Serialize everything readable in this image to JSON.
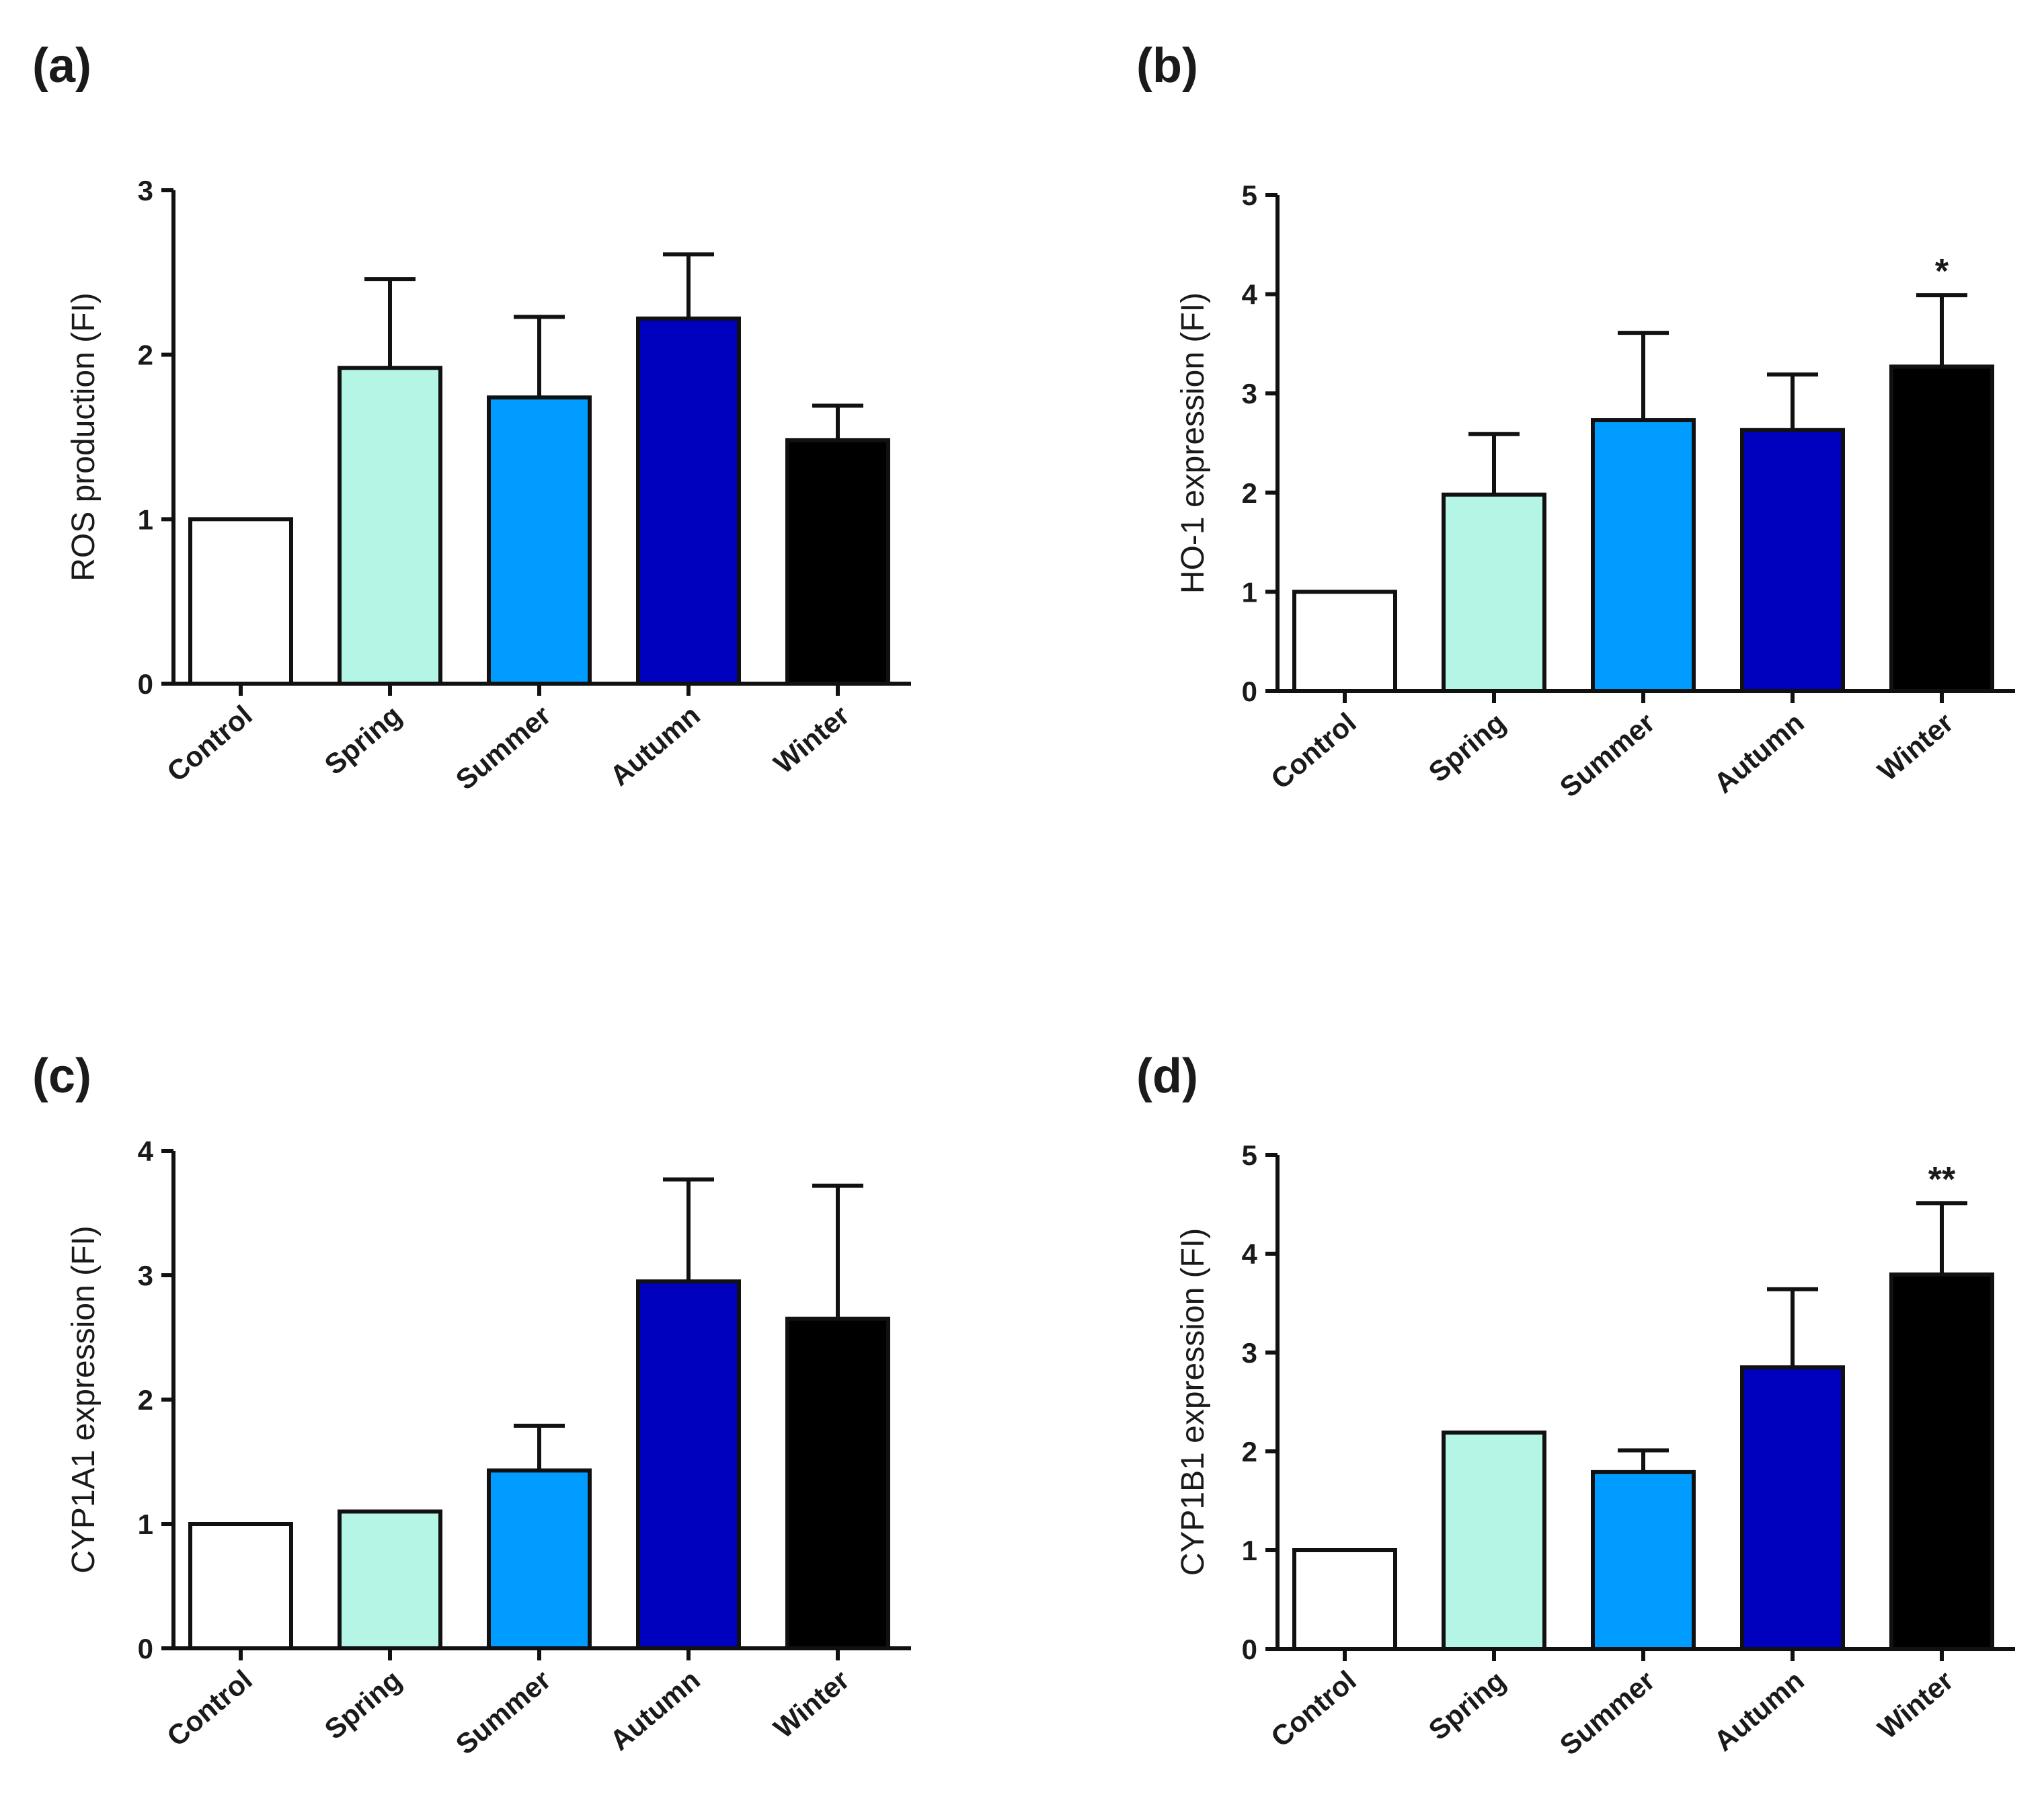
{
  "chart_data": [
    {
      "panel": "(a)",
      "type": "bar",
      "categories": [
        "Control",
        "Spring",
        "Summer",
        "Autumn",
        "Winter"
      ],
      "values": [
        1.0,
        1.92,
        1.74,
        2.22,
        1.48
      ],
      "errors": [
        0.0,
        0.54,
        0.49,
        0.39,
        0.21
      ],
      "significance": [
        "",
        "",
        "",
        "",
        ""
      ],
      "colors": [
        "#ffffff",
        "#b5f5e6",
        "#009cff",
        "#0000bf",
        "#000000"
      ],
      "ylabel": "ROS production (FI)",
      "xlabel": "",
      "ylim": [
        0,
        3
      ],
      "yticks": [
        "0",
        "1",
        "2",
        "3"
      ]
    },
    {
      "panel": "(b)",
      "type": "bar",
      "categories": [
        "Control",
        "Spring",
        "Summer",
        "Autumn",
        "Winter"
      ],
      "values": [
        1.0,
        1.98,
        2.73,
        2.63,
        3.27
      ],
      "errors": [
        0.0,
        0.61,
        0.88,
        0.56,
        0.72
      ],
      "significance": [
        "",
        "",
        "",
        "",
        "*"
      ],
      "colors": [
        "#ffffff",
        "#b5f5e6",
        "#009cff",
        "#0000bf",
        "#000000"
      ],
      "ylabel": "HO-1 expression (FI)",
      "xlabel": "",
      "ylim": [
        0,
        5
      ],
      "yticks": [
        "0",
        "1",
        "2",
        "3",
        "4",
        "5"
      ]
    },
    {
      "panel": "(c)",
      "type": "bar",
      "categories": [
        "Control",
        "Spring",
        "Summer",
        "Autumn",
        "Winter"
      ],
      "values": [
        1.0,
        1.1,
        1.43,
        2.95,
        2.65
      ],
      "errors": [
        0.0,
        0.0,
        0.36,
        0.82,
        1.07
      ],
      "significance": [
        "",
        "",
        "",
        "",
        ""
      ],
      "colors": [
        "#ffffff",
        "#b5f5e6",
        "#009cff",
        "#0000bf",
        "#000000"
      ],
      "ylabel": "CYP1A1 expression (FI)",
      "xlabel": "",
      "ylim": [
        0,
        4
      ],
      "yticks": [
        "0",
        "1",
        "2",
        "3",
        "4"
      ]
    },
    {
      "panel": "(d)",
      "type": "bar",
      "categories": [
        "Control",
        "Spring",
        "Summer",
        "Autumn",
        "Winter"
      ],
      "values": [
        1.0,
        2.19,
        1.79,
        2.85,
        3.79
      ],
      "errors": [
        0.0,
        0.0,
        0.22,
        0.79,
        0.72
      ],
      "significance": [
        "",
        "",
        "",
        "",
        "**"
      ],
      "colors": [
        "#ffffff",
        "#b5f5e6",
        "#009cff",
        "#0000bf",
        "#000000"
      ],
      "ylabel": "CYP1B1 expression (FI)",
      "xlabel": "",
      "ylim": [
        0,
        5
      ],
      "yticks": [
        "0",
        "1",
        "2",
        "3",
        "4",
        "5"
      ]
    }
  ]
}
